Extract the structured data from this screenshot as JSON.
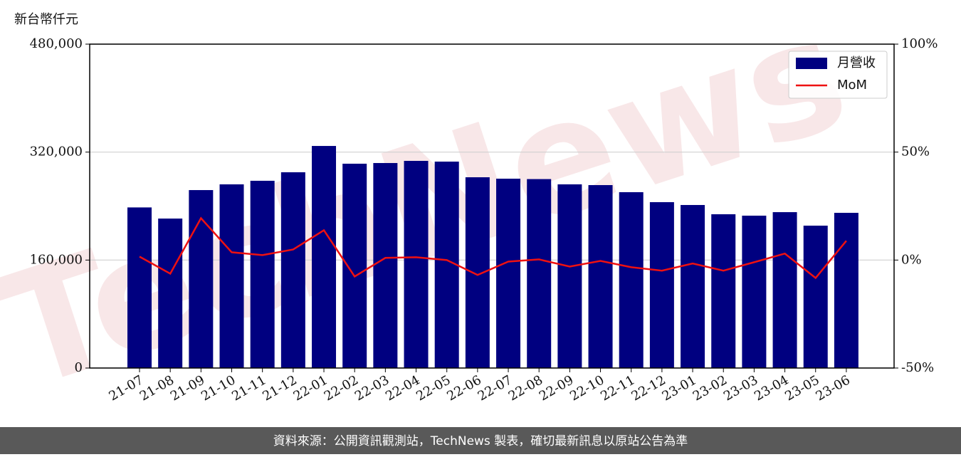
{
  "chart_data": {
    "type": "bar-line",
    "ylabel": "新台幣仟元",
    "watermark": "TechNews",
    "footer": "資料來源：公開資訊觀測站，TechNews 製表，確切最新訊息以原站公告為準",
    "categories": [
      "21-07",
      "21-08",
      "21-09",
      "21-10",
      "21-11",
      "21-12",
      "22-01",
      "22-02",
      "22-03",
      "22-04",
      "22-05",
      "22-06",
      "22-07",
      "22-08",
      "22-09",
      "22-10",
      "22-11",
      "22-12",
      "23-01",
      "23-02",
      "23-03",
      "23-04",
      "23-05",
      "23-06"
    ],
    "series": [
      {
        "name": "月營收",
        "type": "bar",
        "color": "#000080",
        "values": [
          238000,
          221500,
          263700,
          272200,
          277500,
          290100,
          329100,
          302800,
          303800,
          307000,
          305900,
          282700,
          280600,
          280000,
          272200,
          271100,
          260600,
          245800,
          241600,
          227900,
          225800,
          231000,
          211000,
          230000
        ]
      },
      {
        "name": "MoM",
        "type": "line",
        "color": "#ee1111",
        "axis": "y2",
        "values": [
          1.6,
          -6.3,
          19.4,
          3.6,
          2.3,
          4.9,
          13.8,
          -7.6,
          1.0,
          1.3,
          0,
          -6.9,
          -0.7,
          0.3,
          -3.0,
          -0.4,
          -3.3,
          -4.9,
          -1.6,
          -4.9,
          -1.0,
          3.0,
          -8.3,
          8.9
        ]
      }
    ],
    "ylim": [
      0,
      480000
    ],
    "yticks": [
      {
        "value": 0,
        "label": "0"
      },
      {
        "value": 160000,
        "label": "160,000"
      },
      {
        "value": 320000,
        "label": "320,000"
      },
      {
        "value": 480000,
        "label": "480,000"
      }
    ],
    "y2lim": [
      -50,
      100
    ],
    "y2ticks": [
      {
        "value": -50,
        "label": "-50%"
      },
      {
        "value": 0,
        "label": "0%"
      },
      {
        "value": 50,
        "label": "50%"
      },
      {
        "value": 100,
        "label": "100%"
      }
    ],
    "grid": true,
    "legend": "upper right"
  }
}
